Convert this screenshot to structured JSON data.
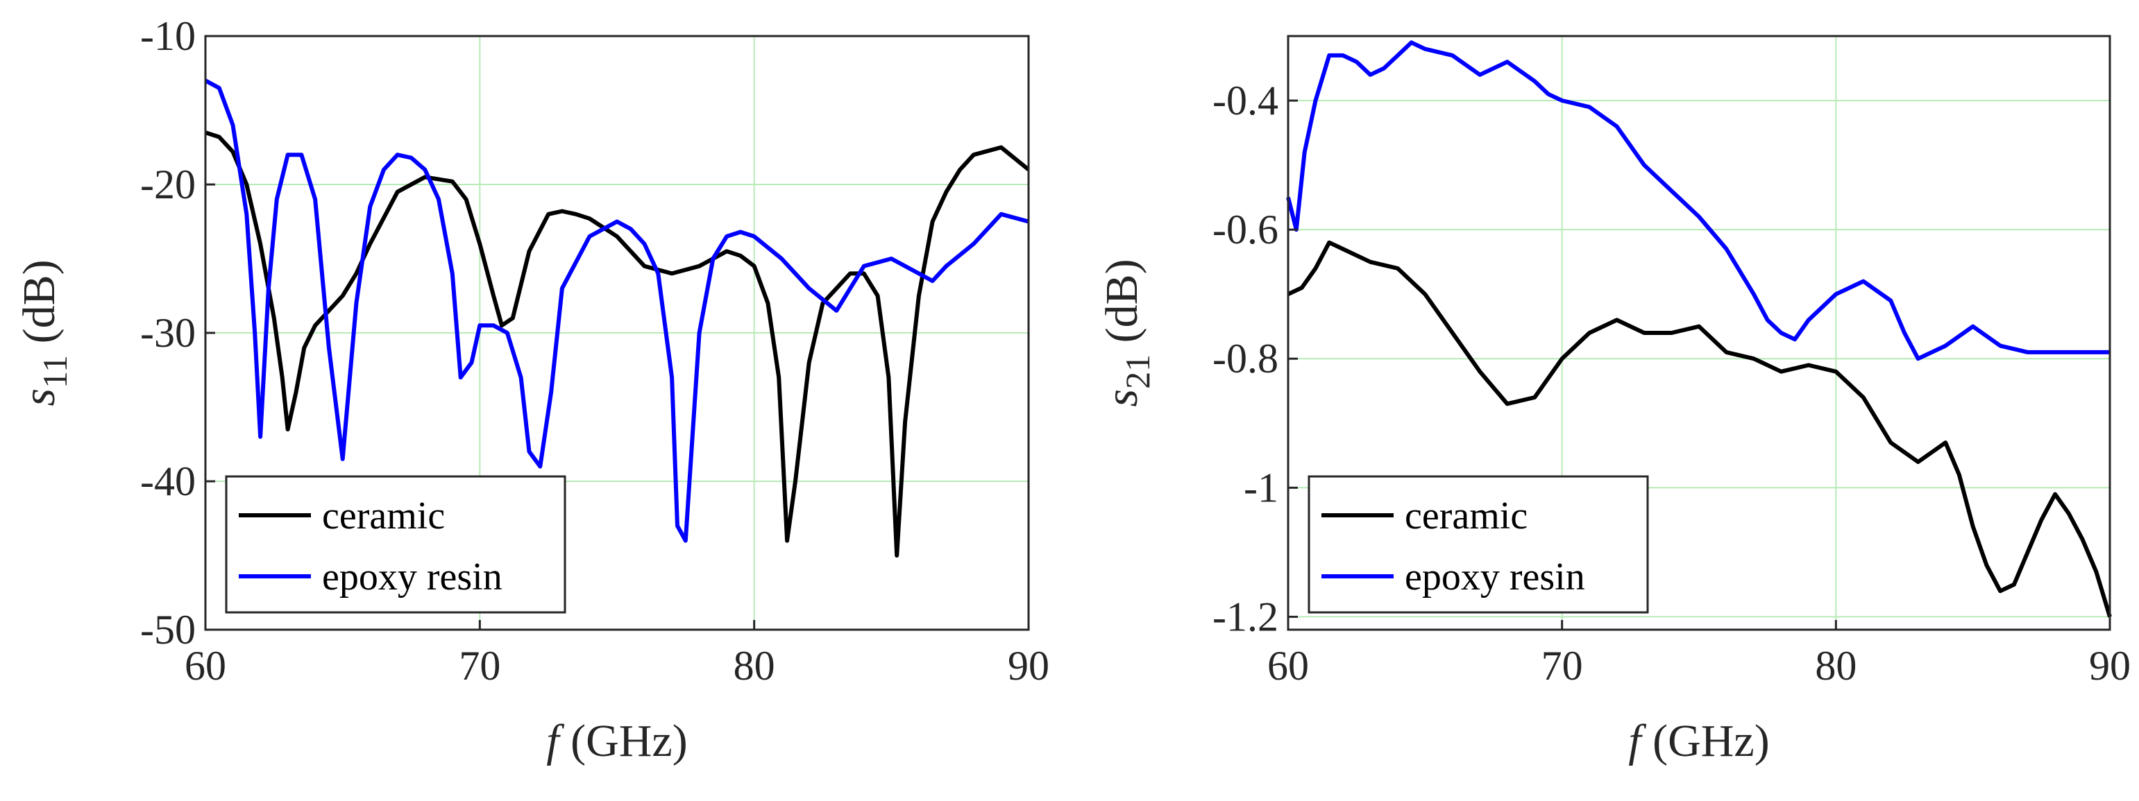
{
  "chart_data": [
    {
      "type": "line",
      "xlabel": {
        "italic": "f",
        "text": " (GHz)"
      },
      "ylabel": {
        "italic": "s",
        "sub": "11",
        "text": " (dB)"
      },
      "xlim": [
        60,
        90
      ],
      "ylim": [
        -50,
        -10
      ],
      "xticks": [
        60,
        70,
        80,
        90
      ],
      "yticks": [
        -50,
        -40,
        -30,
        -20,
        -10
      ],
      "xtick_labels": [
        "60",
        "70",
        "80",
        "90"
      ],
      "ytick_labels": [
        "-50",
        "-40",
        "-30",
        "-20",
        "-10"
      ],
      "grid": true,
      "grid_color": "#b7ebb7",
      "legend_placement": "bottom-left",
      "series": [
        {
          "name": "ceramic",
          "color": "#000000",
          "x": [
            60,
            60.5,
            61,
            61.5,
            62,
            62.5,
            62.8,
            63,
            63.3,
            63.6,
            64,
            64.5,
            65,
            65.5,
            66,
            67,
            68,
            69,
            69.5,
            70,
            70.5,
            70.8,
            71.2,
            71.8,
            72.5,
            73,
            73.5,
            74,
            75,
            76,
            77,
            78,
            79,
            79.5,
            80,
            80.5,
            80.9,
            81.2,
            81.5,
            82,
            82.5,
            83,
            83.5,
            84,
            84.5,
            84.9,
            85.2,
            85.5,
            86,
            86.5,
            87,
            87.5,
            88,
            89,
            90
          ],
          "y": [
            -16.5,
            -16.8,
            -17.8,
            -20,
            -24,
            -29,
            -33,
            -36.5,
            -34,
            -31,
            -29.5,
            -28.5,
            -27.5,
            -26,
            -24,
            -20.5,
            -19.5,
            -19.8,
            -21,
            -24,
            -27.5,
            -29.5,
            -29,
            -24.5,
            -22,
            -21.8,
            -22,
            -22.3,
            -23.5,
            -25.5,
            -26,
            -25.5,
            -24.5,
            -24.8,
            -25.5,
            -28,
            -33,
            -44,
            -40,
            -32,
            -28,
            -27,
            -26,
            -26,
            -27.5,
            -33,
            -45,
            -36,
            -27.5,
            -22.5,
            -20.5,
            -19,
            -18,
            -17.5,
            -19
          ]
        },
        {
          "name": "epoxy resin",
          "color": "#0000ff",
          "x": [
            60,
            60.5,
            61,
            61.5,
            61.8,
            62,
            62.3,
            62.6,
            63,
            63.5,
            64,
            64.5,
            65,
            65.5,
            66,
            66.5,
            67,
            67.5,
            68,
            68.5,
            69,
            69.3,
            69.7,
            70,
            70.5,
            71,
            71.5,
            71.8,
            72.2,
            72.6,
            73,
            74,
            75,
            75.5,
            76,
            76.5,
            77,
            77.2,
            77.5,
            78,
            78.5,
            79,
            79.5,
            80,
            81,
            82,
            83,
            84,
            85,
            86,
            86.5,
            87,
            88,
            89,
            90
          ],
          "y": [
            -13,
            -13.5,
            -16,
            -22,
            -30,
            -37,
            -27,
            -21,
            -18,
            -18,
            -21,
            -31,
            -38.5,
            -28,
            -21.5,
            -19,
            -18,
            -18.2,
            -19,
            -21,
            -26,
            -33,
            -32,
            -29.5,
            -29.5,
            -30,
            -33,
            -38,
            -39,
            -34,
            -27,
            -23.5,
            -22.5,
            -23,
            -24,
            -26,
            -33,
            -43,
            -44,
            -30,
            -25,
            -23.5,
            -23.2,
            -23.5,
            -25,
            -27,
            -28.5,
            -25.5,
            -25,
            -26,
            -26.5,
            -25.5,
            -24,
            -22,
            -22.5
          ]
        }
      ]
    },
    {
      "type": "line",
      "xlabel": {
        "italic": "f",
        "text": " (GHz)"
      },
      "ylabel": {
        "italic": "s",
        "sub": "21",
        "text": " (dB)"
      },
      "xlim": [
        60,
        90
      ],
      "ylim": [
        -1.22,
        -0.3
      ],
      "xticks": [
        60,
        70,
        80,
        90
      ],
      "yticks": [
        -1.2,
        -1,
        -0.8,
        -0.6,
        -0.4
      ],
      "xtick_labels": [
        "60",
        "70",
        "80",
        "90"
      ],
      "ytick_labels": [
        "-1.2",
        "-1",
        "-0.8",
        "-0.6",
        "-0.4"
      ],
      "grid": true,
      "grid_color": "#b7ebb7",
      "legend_placement": "bottom-left",
      "series": [
        {
          "name": "ceramic",
          "color": "#000000",
          "x": [
            60,
            60.5,
            61,
            61.5,
            62,
            63,
            64,
            65,
            66,
            67,
            68,
            69,
            70,
            71,
            72,
            73,
            74,
            75,
            76,
            77,
            78,
            79,
            80,
            81,
            82,
            83,
            84,
            84.5,
            85,
            85.5,
            86,
            86.5,
            87,
            87.5,
            88,
            88.5,
            89,
            89.5,
            90
          ],
          "y": [
            -0.7,
            -0.69,
            -0.66,
            -0.62,
            -0.63,
            -0.65,
            -0.66,
            -0.7,
            -0.76,
            -0.82,
            -0.87,
            -0.86,
            -0.8,
            -0.76,
            -0.74,
            -0.76,
            -0.76,
            -0.75,
            -0.79,
            -0.8,
            -0.82,
            -0.81,
            -0.82,
            -0.86,
            -0.93,
            -0.96,
            -0.93,
            -0.98,
            -1.06,
            -1.12,
            -1.16,
            -1.15,
            -1.1,
            -1.05,
            -1.01,
            -1.04,
            -1.08,
            -1.13,
            -1.2
          ]
        },
        {
          "name": "epoxy resin",
          "color": "#0000ff",
          "x": [
            60,
            60.3,
            60.6,
            61,
            61.5,
            62,
            62.5,
            63,
            63.5,
            64,
            64.5,
            65,
            66,
            67,
            68,
            69,
            69.5,
            70,
            71,
            72,
            73,
            74,
            75,
            76,
            77,
            77.5,
            78,
            78.5,
            79,
            80,
            81,
            82,
            82.5,
            83,
            84,
            85,
            86,
            87,
            88,
            89,
            90
          ],
          "y": [
            -0.55,
            -0.6,
            -0.48,
            -0.4,
            -0.33,
            -0.33,
            -0.34,
            -0.36,
            -0.35,
            -0.33,
            -0.31,
            -0.32,
            -0.33,
            -0.36,
            -0.34,
            -0.37,
            -0.39,
            -0.4,
            -0.41,
            -0.44,
            -0.5,
            -0.54,
            -0.58,
            -0.63,
            -0.7,
            -0.74,
            -0.76,
            -0.77,
            -0.74,
            -0.7,
            -0.68,
            -0.71,
            -0.76,
            -0.8,
            -0.78,
            -0.75,
            -0.78,
            -0.79,
            -0.79,
            -0.79,
            -0.79
          ]
        }
      ]
    }
  ]
}
